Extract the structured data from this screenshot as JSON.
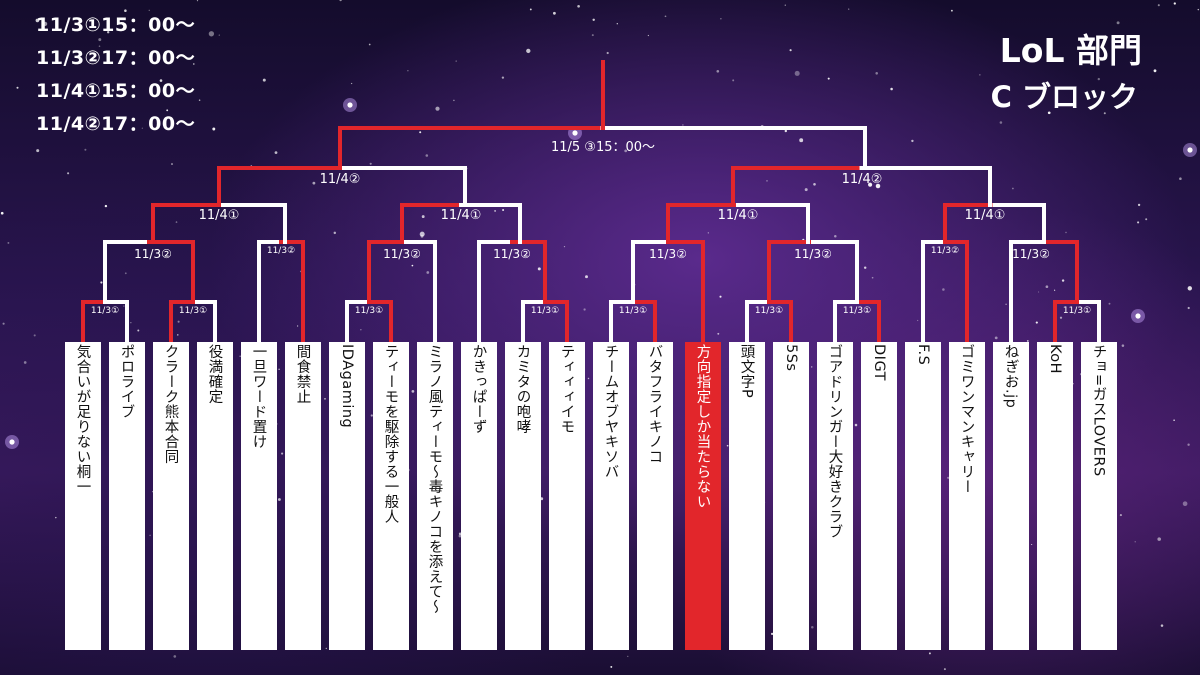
{
  "schedule": [
    "11/3①15：00～",
    "11/3②17：00～",
    "11/4①15：00～",
    "11/4②17：00～"
  ],
  "title": {
    "line1": "LoL 部門",
    "line2": "C ブロック"
  },
  "teams": [
    "気合いが足りない桐一",
    "ポロライブ",
    "クラーク熊本合同",
    "役満確定",
    "一旦ワード置け",
    "間食禁止",
    "IDAgaming",
    "ティーモを駆除する一般人",
    "ミラノ風ティーモ～毒キノコを添えて～",
    "かきっぱーず",
    "カミタの咆哮",
    "ティィィイモ",
    "チームオブヤキソバ",
    "バタフライキノコ",
    "方向指定しか当たらない",
    "頭文字P",
    "5Ss",
    "ゴアドリンガー大好きクラブ",
    "DIGT",
    "F.S",
    "ゴミワンマンキャリー",
    "ねぎお.jp",
    "KoH",
    "チョ=ガスLOVERS"
  ],
  "highlight_team": "方向指定しか当たらない",
  "round_labels": {
    "r1": "11/3①",
    "r2": "11/3②",
    "r3": "11/4①",
    "r4": "11/4②",
    "final": "11/5 ③15：00～"
  },
  "colors": {
    "win": "#e2262b",
    "line": "#ffffff",
    "highlight": "#e2262b"
  }
}
